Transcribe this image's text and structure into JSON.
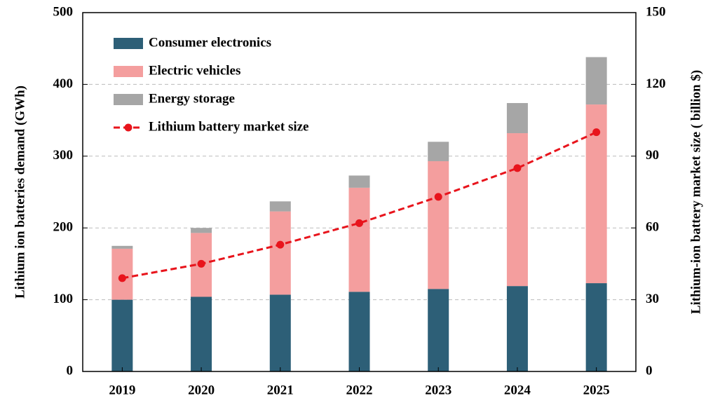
{
  "chart_data": {
    "type": "bar",
    "stacked": true,
    "y_label": "Lithium ion batteries demand (GWh)",
    "y2_label": "Lithium-ion battery market size ( billion $)",
    "categories": [
      "2019",
      "2020",
      "2021",
      "2022",
      "2023",
      "2024",
      "2025"
    ],
    "series": [
      {
        "name": "Consumer electronics",
        "color": "#2d5f77",
        "values": [
          100,
          104,
          107,
          111,
          115,
          119,
          123
        ]
      },
      {
        "name": "Electric vehicles",
        "color": "#f49e9e",
        "values": [
          71,
          89,
          116,
          145,
          178,
          213,
          249
        ]
      },
      {
        "name": "Energy storage",
        "color": "#a6a6a6",
        "values": [
          4,
          7,
          14,
          17,
          27,
          42,
          66
        ]
      },
      {
        "name": "Lithium battery market size",
        "color": "#e8141c",
        "type": "line",
        "axis": "y2",
        "values": [
          39,
          45,
          53,
          62,
          73,
          85,
          100
        ]
      }
    ],
    "ylim": [
      0,
      500
    ],
    "yticks": [
      0,
      100,
      200,
      300,
      400,
      500
    ],
    "y2lim": [
      0,
      150
    ],
    "y2ticks": [
      0,
      30,
      60,
      90,
      120,
      150
    ],
    "grid": true,
    "legend": "upper left"
  }
}
